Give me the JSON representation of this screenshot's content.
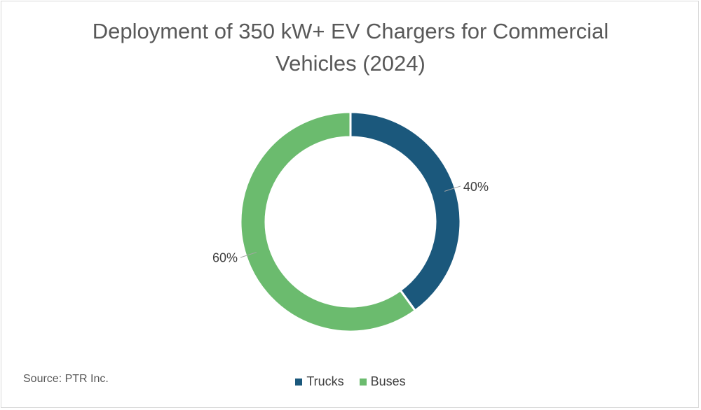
{
  "chart_data": {
    "type": "pie",
    "variant": "donut",
    "title": "Deployment of 350 kW+ EV Chargers for Commercial Vehicles (2024)",
    "title_lines": [
      "Deployment of 350 kW+ EV Chargers for Commercial",
      "Vehicles (2024)"
    ],
    "categories": [
      "Trucks",
      "Buses"
    ],
    "values": [
      40,
      60
    ],
    "labels": [
      "40%",
      "60%"
    ],
    "colors": [
      "#1b587c",
      "#6bbb6e"
    ],
    "legend": "bottom"
  },
  "source": "Source: PTR Inc."
}
